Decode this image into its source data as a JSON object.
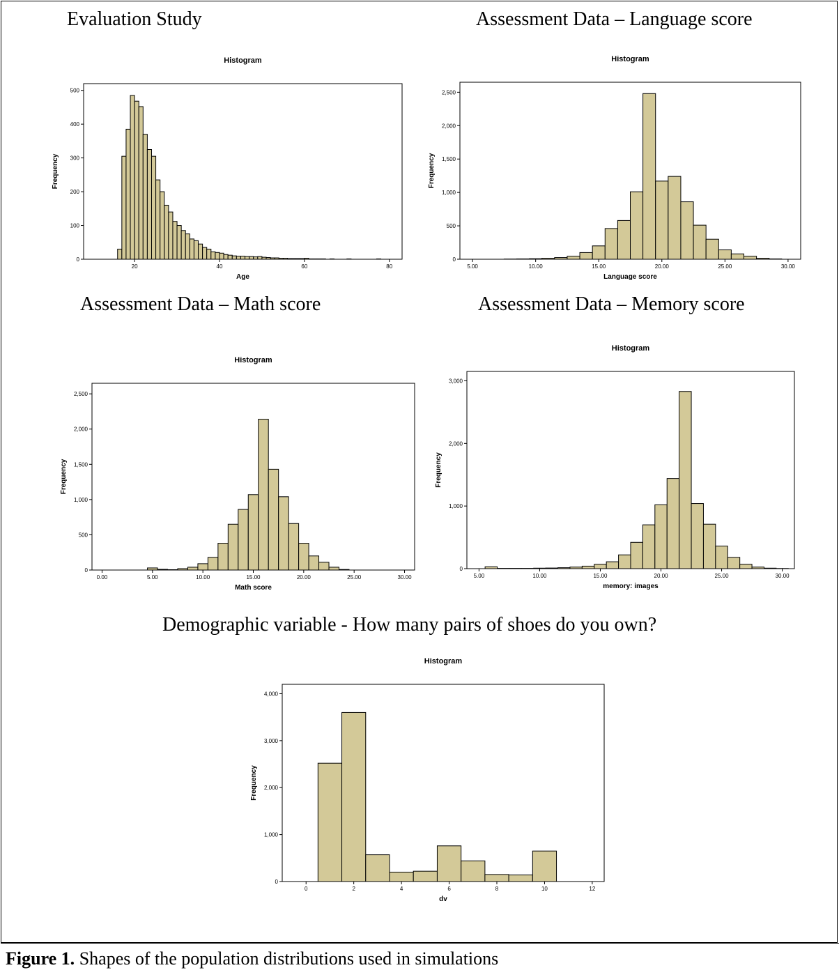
{
  "headings": {
    "h1": "Evaluation Study",
    "h2": "Assessment Data – Language score",
    "h3": "Assessment Data – Math score",
    "h4": "Assessment Data – Memory score",
    "h5": "Demographic variable - How many pairs of shoes do you own?"
  },
  "caption": {
    "label": "Figure 1.",
    "text": " Shapes of the population distributions used in simulations"
  },
  "colors": {
    "bar_fill": "#d3c998",
    "bar_stroke": "#000000",
    "background": "#ffffff"
  },
  "chart_data": [
    {
      "type": "bar",
      "title": "Histogram",
      "xlabel": "Age",
      "ylabel": "Frequency",
      "xlim": [
        8,
        83
      ],
      "ylim": [
        0,
        520
      ],
      "xticks": [
        20,
        40,
        60,
        80
      ],
      "xtick_labels": [
        "20",
        "40",
        "60",
        "80"
      ],
      "yticks": [
        0,
        100,
        200,
        300,
        400,
        500
      ],
      "ytick_labels": [
        "0",
        "100",
        "200",
        "300",
        "400",
        "500"
      ],
      "bin_start": 16,
      "bin_width": 1,
      "values": [
        30,
        305,
        385,
        485,
        468,
        452,
        370,
        325,
        305,
        235,
        200,
        160,
        140,
        112,
        100,
        85,
        75,
        60,
        55,
        45,
        35,
        30,
        22,
        20,
        18,
        14,
        12,
        10,
        9,
        9,
        8,
        8,
        7,
        8,
        6,
        5,
        4,
        4,
        3,
        3,
        2,
        2,
        2,
        2,
        3,
        1,
        1,
        1,
        1,
        0,
        1,
        0,
        0,
        0,
        1,
        0,
        0,
        0,
        0,
        0,
        0,
        1,
        0,
        0,
        0
      ]
    },
    {
      "type": "bar",
      "title": "Histogram",
      "xlabel": "Language score",
      "ylabel": "Frequency",
      "xlim": [
        4,
        31
      ],
      "ylim": [
        0,
        2650
      ],
      "xticks": [
        5,
        10,
        15,
        20,
        25,
        30
      ],
      "xtick_labels": [
        "5.00",
        "10.00",
        "15.00",
        "20.00",
        "25.00",
        "30.00"
      ],
      "yticks": [
        0,
        500,
        1000,
        1500,
        2000,
        2500
      ],
      "ytick_labels": [
        "0",
        "500",
        "1,000",
        "1,500",
        "2,000",
        "2,500"
      ],
      "bin_start": 7.5,
      "bin_width": 1,
      "values": [
        3,
        5,
        8,
        15,
        25,
        45,
        100,
        200,
        460,
        580,
        1010,
        2480,
        1170,
        1240,
        860,
        510,
        300,
        140,
        80,
        45,
        15,
        5
      ]
    },
    {
      "type": "bar",
      "title": "Histogram",
      "xlabel": "Math score",
      "ylabel": "Frequency",
      "xlim": [
        -1,
        31
      ],
      "ylim": [
        0,
        2650
      ],
      "xticks": [
        0,
        5,
        10,
        15,
        20,
        25,
        30
      ],
      "xtick_labels": [
        "0.00",
        "5.00",
        "10.00",
        "15.00",
        "20.00",
        "25.00",
        "30.00"
      ],
      "yticks": [
        0,
        500,
        1000,
        1500,
        2000,
        2500
      ],
      "ytick_labels": [
        "0",
        "500",
        "1,000",
        "1,500",
        "2,000",
        "2,500"
      ],
      "bin_start": 4.5,
      "bin_width": 1,
      "values": [
        30,
        10,
        5,
        20,
        40,
        90,
        180,
        380,
        650,
        860,
        1070,
        2140,
        1430,
        1040,
        660,
        380,
        200,
        110,
        40,
        8
      ]
    },
    {
      "type": "bar",
      "title": "Histogram",
      "xlabel": "memory: images",
      "ylabel": "Frequency",
      "xlim": [
        4,
        31
      ],
      "ylim": [
        0,
        3150
      ],
      "xticks": [
        5,
        10,
        15,
        20,
        25,
        30
      ],
      "xtick_labels": [
        "5.00",
        "10.00",
        "15.00",
        "20.00",
        "25.00",
        "30.00"
      ],
      "yticks": [
        0,
        1000,
        2000,
        3000
      ],
      "ytick_labels": [
        "0",
        "1,000",
        "2,000",
        "3,000"
      ],
      "bin_start": 5.5,
      "bin_width": 1,
      "values": [
        30,
        5,
        5,
        5,
        8,
        10,
        15,
        25,
        40,
        70,
        110,
        220,
        420,
        700,
        1020,
        1440,
        2830,
        1040,
        710,
        360,
        180,
        70,
        25,
        8,
        3
      ]
    },
    {
      "type": "bar",
      "title": "Histogram",
      "xlabel": "dv",
      "ylabel": "Frequency",
      "xlim": [
        -1,
        12.5
      ],
      "ylim": [
        0,
        4200
      ],
      "xticks": [
        0,
        2,
        4,
        6,
        8,
        10,
        12
      ],
      "xtick_labels": [
        "0",
        "2",
        "4",
        "6",
        "8",
        "10",
        "12"
      ],
      "yticks": [
        0,
        1000,
        2000,
        3000,
        4000
      ],
      "ytick_labels": [
        "0",
        "1,000",
        "2,000",
        "3,000",
        "4,000"
      ],
      "bin_start": 0.5,
      "bin_width": 1,
      "values": [
        2520,
        3600,
        570,
        200,
        220,
        760,
        440,
        150,
        140,
        650
      ]
    }
  ]
}
